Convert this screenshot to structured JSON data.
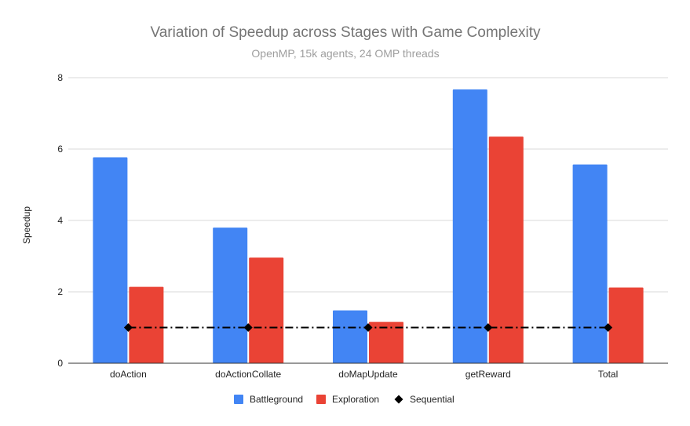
{
  "chart_data": {
    "type": "bar",
    "title": "Variation of Speedup across Stages with Game Complexity",
    "subtitle": "OpenMP, 15k agents, 24 OMP threads",
    "xlabel": "",
    "ylabel": "Speedup",
    "ylim": [
      0,
      8
    ],
    "yticks": [
      "0",
      "2",
      "4",
      "6",
      "8"
    ],
    "grid": true,
    "legend_position": "bottom",
    "categories": [
      "doAction",
      "doActionCollate",
      "doMapUpdate",
      "getReward",
      "Total"
    ],
    "series": [
      {
        "name": "Battleground",
        "kind": "bar",
        "color": "#4285f4",
        "values": [
          5.77,
          3.8,
          1.48,
          7.67,
          5.57
        ]
      },
      {
        "name": "Exploration",
        "kind": "bar",
        "color": "#ea4335",
        "values": [
          2.14,
          2.96,
          1.16,
          6.35,
          2.12
        ]
      },
      {
        "name": "Sequential",
        "kind": "line",
        "color": "#000000",
        "marker": "diamond",
        "line_style": "dash-dot",
        "values": [
          1,
          1,
          1,
          1,
          1
        ]
      }
    ]
  }
}
